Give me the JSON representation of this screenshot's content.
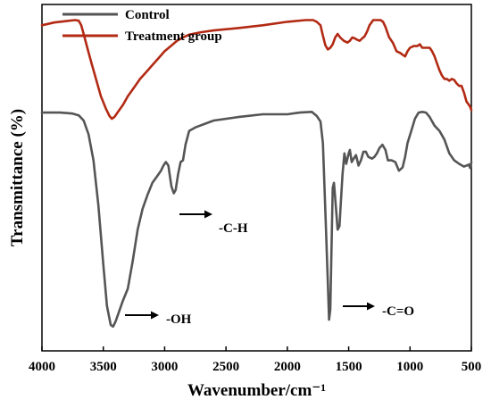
{
  "chart_data": {
    "type": "line",
    "xlabel": "Wavenumber/cm⁻¹",
    "ylabel": "Transmittance (%)",
    "xlim": [
      4000,
      500
    ],
    "x_reversed": true,
    "ylim": [
      0,
      100
    ],
    "y_ticks_shown": false,
    "x_ticks": [
      4000,
      3500,
      3000,
      2500,
      2000,
      1500,
      1000,
      500
    ],
    "x_tick_labels": [
      "4000",
      "3500",
      "3000",
      "2500",
      "2000",
      "1500",
      "1000",
      "500"
    ],
    "grid": false,
    "legend": {
      "placement": "top-left"
    },
    "series": [
      {
        "name": "Control",
        "color": "#555555",
        "points": [
          [
            4000,
            68.8
          ],
          [
            3850,
            68.8
          ],
          [
            3750,
            68.5
          ],
          [
            3700,
            68.0
          ],
          [
            3660,
            66.5
          ],
          [
            3620,
            62.5
          ],
          [
            3580,
            55
          ],
          [
            3540,
            42
          ],
          [
            3500,
            25
          ],
          [
            3470,
            13
          ],
          [
            3440,
            7.5
          ],
          [
            3420,
            7
          ],
          [
            3400,
            8.5
          ],
          [
            3380,
            10.5
          ],
          [
            3340,
            14.5
          ],
          [
            3300,
            18
          ],
          [
            3260,
            26
          ],
          [
            3220,
            35
          ],
          [
            3180,
            41
          ],
          [
            3140,
            45
          ],
          [
            3100,
            48.5
          ],
          [
            3060,
            50.5
          ],
          [
            3030,
            52
          ],
          [
            3010,
            53.5
          ],
          [
            2990,
            54.5
          ],
          [
            2970,
            53.5
          ],
          [
            2945,
            47.5
          ],
          [
            2925,
            45.5
          ],
          [
            2910,
            46.5
          ],
          [
            2890,
            51
          ],
          [
            2870,
            54.5
          ],
          [
            2850,
            55
          ],
          [
            2830,
            59.5
          ],
          [
            2800,
            63.5
          ],
          [
            2750,
            64.5
          ],
          [
            2600,
            66.5
          ],
          [
            2400,
            67.5
          ],
          [
            2200,
            68.3
          ],
          [
            2000,
            68.3
          ],
          [
            1900,
            68.8
          ],
          [
            1800,
            69
          ],
          [
            1760,
            67.8
          ],
          [
            1730,
            66.2
          ],
          [
            1710,
            60
          ],
          [
            1690,
            40
          ],
          [
            1670,
            20
          ],
          [
            1660,
            9
          ],
          [
            1650,
            12
          ],
          [
            1640,
            29
          ],
          [
            1630,
            47
          ],
          [
            1620,
            48.5
          ],
          [
            1605,
            42
          ],
          [
            1590,
            35
          ],
          [
            1575,
            36
          ],
          [
            1565,
            42
          ],
          [
            1550,
            51
          ],
          [
            1535,
            57
          ],
          [
            1520,
            54
          ],
          [
            1500,
            57
          ],
          [
            1490,
            58
          ],
          [
            1475,
            54.5
          ],
          [
            1460,
            55.5
          ],
          [
            1440,
            56.5
          ],
          [
            1420,
            53.5
          ],
          [
            1400,
            55
          ],
          [
            1380,
            57.5
          ],
          [
            1360,
            57.5
          ],
          [
            1340,
            56
          ],
          [
            1310,
            55.5
          ],
          [
            1290,
            56
          ],
          [
            1270,
            57
          ],
          [
            1250,
            58.5
          ],
          [
            1225,
            59.5
          ],
          [
            1200,
            58
          ],
          [
            1180,
            55
          ],
          [
            1150,
            55
          ],
          [
            1120,
            54.5
          ],
          [
            1090,
            52
          ],
          [
            1060,
            53
          ],
          [
            1040,
            56
          ],
          [
            1020,
            60
          ],
          [
            990,
            63.5
          ],
          [
            960,
            67
          ],
          [
            930,
            68.8
          ],
          [
            900,
            69
          ],
          [
            870,
            68.8
          ],
          [
            840,
            67.5
          ],
          [
            800,
            65
          ],
          [
            760,
            63.5
          ],
          [
            720,
            61
          ],
          [
            680,
            57
          ],
          [
            640,
            55
          ],
          [
            600,
            54
          ],
          [
            560,
            53.2
          ],
          [
            520,
            53.8
          ],
          [
            510,
            52.8
          ],
          [
            500,
            54.5
          ]
        ]
      },
      {
        "name": "Treatment group",
        "color": "#b22a14",
        "points": [
          [
            4000,
            94
          ],
          [
            3900,
            94.8
          ],
          [
            3800,
            95.2
          ],
          [
            3730,
            95.5
          ],
          [
            3700,
            95.3
          ],
          [
            3680,
            94
          ],
          [
            3660,
            91.5
          ],
          [
            3630,
            87.5
          ],
          [
            3600,
            83.5
          ],
          [
            3560,
            78.5
          ],
          [
            3520,
            73.5
          ],
          [
            3480,
            70
          ],
          [
            3450,
            67.8
          ],
          [
            3430,
            67
          ],
          [
            3410,
            67.5
          ],
          [
            3380,
            69
          ],
          [
            3340,
            71
          ],
          [
            3300,
            73.5
          ],
          [
            3250,
            76
          ],
          [
            3200,
            78.5
          ],
          [
            3150,
            80.5
          ],
          [
            3100,
            82.5
          ],
          [
            3050,
            84.5
          ],
          [
            3000,
            86.5
          ],
          [
            2950,
            88
          ],
          [
            2900,
            89.5
          ],
          [
            2850,
            90.5
          ],
          [
            2800,
            91.3
          ],
          [
            2700,
            92
          ],
          [
            2600,
            92.5
          ],
          [
            2400,
            93.2
          ],
          [
            2200,
            94
          ],
          [
            2000,
            95
          ],
          [
            1850,
            95.5
          ],
          [
            1790,
            95.5
          ],
          [
            1760,
            95
          ],
          [
            1730,
            94
          ],
          [
            1710,
            91
          ],
          [
            1690,
            88.2
          ],
          [
            1670,
            87
          ],
          [
            1650,
            87.5
          ],
          [
            1630,
            88.5
          ],
          [
            1610,
            90.5
          ],
          [
            1590,
            91.5
          ],
          [
            1570,
            90.5
          ],
          [
            1540,
            89.5
          ],
          [
            1510,
            89
          ],
          [
            1490,
            89.5
          ],
          [
            1470,
            90.5
          ],
          [
            1450,
            90.2
          ],
          [
            1430,
            89.8
          ],
          [
            1410,
            89.5
          ],
          [
            1390,
            90.2
          ],
          [
            1370,
            90.8
          ],
          [
            1350,
            92.2
          ],
          [
            1330,
            94
          ],
          [
            1300,
            95.5
          ],
          [
            1270,
            95.5
          ],
          [
            1240,
            95.5
          ],
          [
            1220,
            95
          ],
          [
            1200,
            93.5
          ],
          [
            1170,
            90.5
          ],
          [
            1140,
            89
          ],
          [
            1110,
            86.5
          ],
          [
            1080,
            86
          ],
          [
            1060,
            85.5
          ],
          [
            1040,
            85
          ],
          [
            1020,
            86.5
          ],
          [
            1000,
            87.5
          ],
          [
            970,
            88
          ],
          [
            940,
            88
          ],
          [
            920,
            88.5
          ],
          [
            900,
            87.5
          ],
          [
            870,
            87.5
          ],
          [
            840,
            87.5
          ],
          [
            820,
            86.5
          ],
          [
            800,
            85
          ],
          [
            780,
            83
          ],
          [
            760,
            81
          ],
          [
            740,
            79.5
          ],
          [
            720,
            78.5
          ],
          [
            700,
            78.5
          ],
          [
            680,
            78
          ],
          [
            660,
            78.5
          ],
          [
            640,
            78.2
          ],
          [
            620,
            77.2
          ],
          [
            600,
            76.5
          ],
          [
            580,
            76.5
          ],
          [
            560,
            74.5
          ],
          [
            540,
            72
          ],
          [
            520,
            71
          ],
          [
            510,
            70.5
          ],
          [
            500,
            69.5
          ]
        ]
      }
    ],
    "annotations": [
      {
        "text": "-OH",
        "x": 3400,
        "y": 8
      },
      {
        "text": "-C-H",
        "x": 2900,
        "y": 42
      },
      {
        "text": "-C=O",
        "x": 1650,
        "y": 13
      }
    ]
  }
}
